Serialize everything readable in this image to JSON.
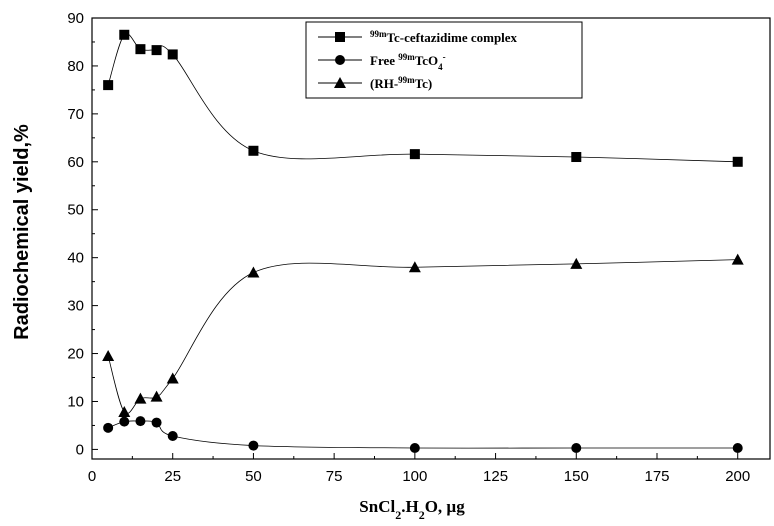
{
  "chart_data": {
    "type": "line",
    "title": "",
    "xlabel": "SnCl2.H2O, µg",
    "xlabel_parts": {
      "pre": "SnCl",
      "sub": "2",
      "post": ".H",
      "sub2": "2",
      "tail": "O, µg"
    },
    "ylabel": "Radiochemical yield,%",
    "xlim": [
      0,
      210
    ],
    "ylim": [
      -2,
      90
    ],
    "xticks": [
      0,
      25,
      50,
      75,
      100,
      125,
      150,
      175,
      200
    ],
    "yticks": [
      0,
      10,
      20,
      30,
      40,
      50,
      60,
      70,
      80,
      90
    ],
    "grid": false,
    "legend_position": "top-right",
    "series": [
      {
        "name": "99mTc-ceftazidime complex",
        "legend": {
          "sup": "99m",
          "text": "Tc-ceftazidime complex"
        },
        "marker": "square",
        "x": [
          5,
          10,
          15,
          20,
          25,
          50,
          100,
          150,
          200
        ],
        "y": [
          76,
          86.5,
          83.5,
          83.3,
          82.4,
          62.3,
          61.6,
          61,
          60
        ]
      },
      {
        "name": "Free 99mTcO4-",
        "legend": {
          "pre": "Free ",
          "sup": "99m",
          "text": "TcO",
          "sub": "4",
          "sup2": "-"
        },
        "marker": "circle",
        "x": [
          5,
          10,
          15,
          20,
          25,
          50,
          100,
          150,
          200
        ],
        "y": [
          4.5,
          5.8,
          5.9,
          5.6,
          2.8,
          0.8,
          0.3,
          0.3,
          0.3
        ]
      },
      {
        "name": "(RH-99mTc)",
        "legend": {
          "pre": "(RH-",
          "sup": "99m",
          "text": "Tc)"
        },
        "marker": "triangle",
        "x": [
          5,
          10,
          15,
          20,
          25,
          50,
          100,
          150,
          200
        ],
        "y": [
          19.5,
          7.8,
          10.6,
          11,
          14.8,
          36.9,
          38,
          38.7,
          39.6
        ]
      }
    ]
  }
}
